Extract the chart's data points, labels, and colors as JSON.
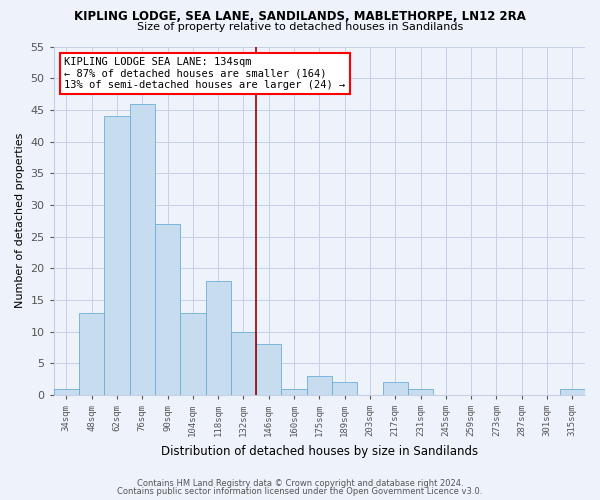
{
  "title": "KIPLING LODGE, SEA LANE, SANDILANDS, MABLETHORPE, LN12 2RA",
  "subtitle": "Size of property relative to detached houses in Sandilands",
  "xlabel": "Distribution of detached houses by size in Sandilands",
  "ylabel": "Number of detached properties",
  "bin_labels": [
    "34sqm",
    "48sqm",
    "62sqm",
    "76sqm",
    "90sqm",
    "104sqm",
    "118sqm",
    "132sqm",
    "146sqm",
    "160sqm",
    "175sqm",
    "189sqm",
    "203sqm",
    "217sqm",
    "231sqm",
    "245sqm",
    "259sqm",
    "273sqm",
    "287sqm",
    "301sqm",
    "315sqm"
  ],
  "bar_values": [
    1,
    13,
    44,
    46,
    27,
    13,
    18,
    10,
    8,
    1,
    3,
    2,
    0,
    2,
    1,
    0,
    0,
    0,
    0,
    0,
    1
  ],
  "bar_color": "#c8dcf0",
  "bar_edge_color": "#6baed6",
  "vline_x_index": 7,
  "vline_color": "#990000",
  "ylim": [
    0,
    55
  ],
  "yticks": [
    0,
    5,
    10,
    15,
    20,
    25,
    30,
    35,
    40,
    45,
    50,
    55
  ],
  "annotation_title": "KIPLING LODGE SEA LANE: 134sqm",
  "annotation_line1": "← 87% of detached houses are smaller (164)",
  "annotation_line2": "13% of semi-detached houses are larger (24) →",
  "footer1": "Contains HM Land Registry data © Crown copyright and database right 2024.",
  "footer2": "Contains public sector information licensed under the Open Government Licence v3.0.",
  "bg_color": "#eef2fb",
  "grid_color": "#c5cfe8",
  "plot_bg_color": "#eef2fb"
}
